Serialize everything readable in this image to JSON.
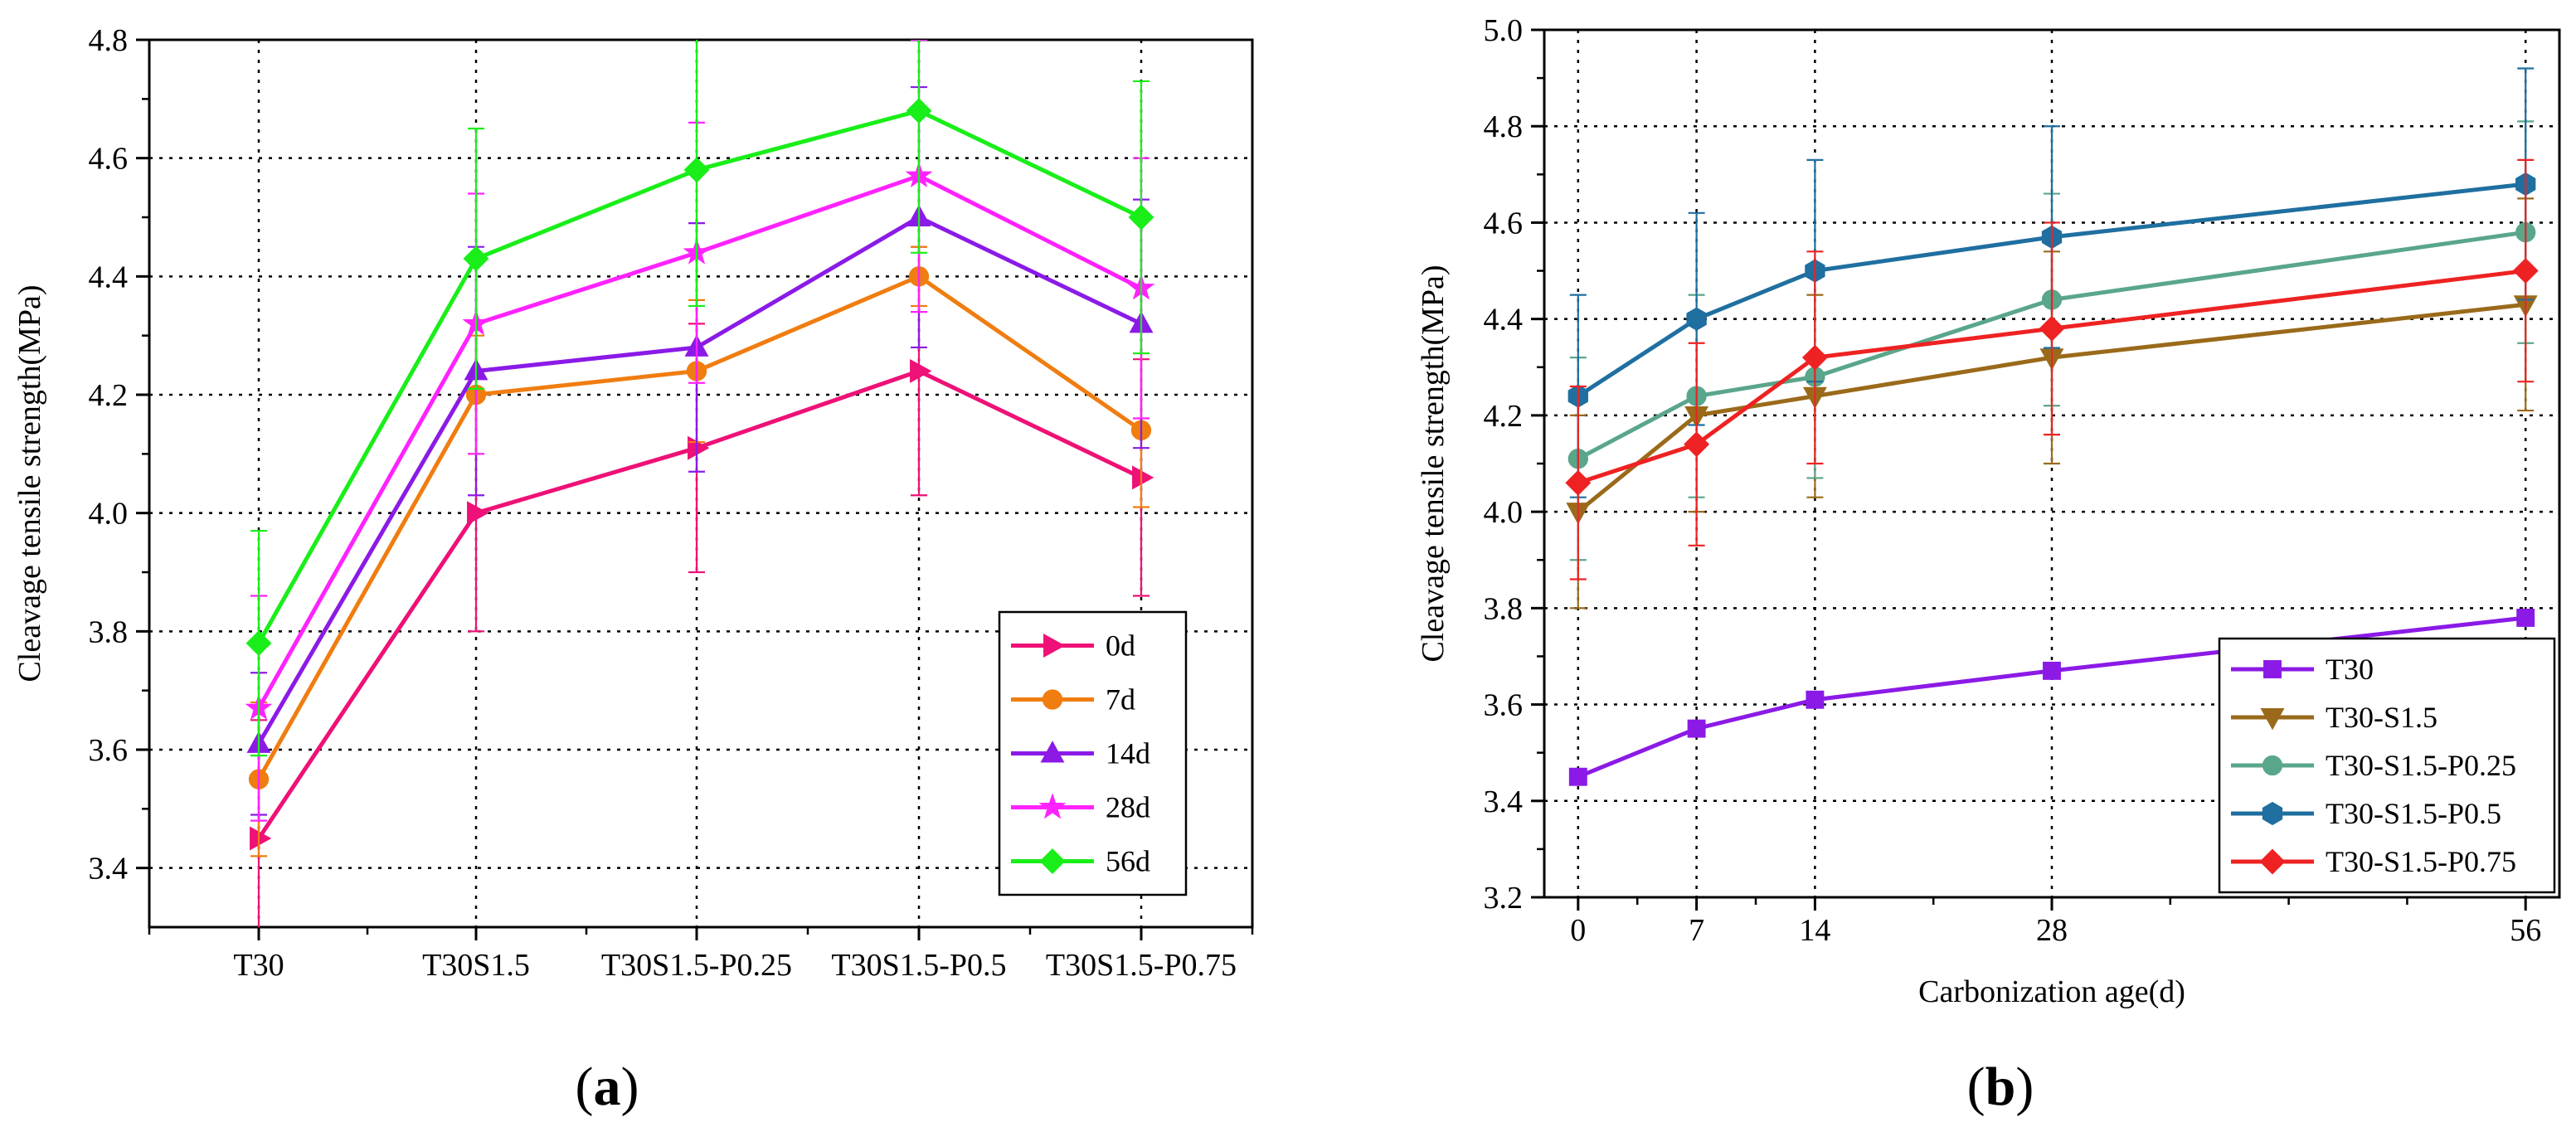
{
  "panel_labels": {
    "a": "(a)",
    "b": "(b)"
  },
  "chart_data": [
    {
      "type": "line",
      "panel": "a",
      "xlabel": "",
      "ylabel": "Cleavage tensile strength(MPa)",
      "categories": [
        "T30",
        "T30S1.5",
        "T30S1.5-P0.25",
        "T30S1.5-P0.5",
        "T30S1.5-P0.75"
      ],
      "ylim": [
        3.3,
        4.8
      ],
      "yticks": [
        3.4,
        3.6,
        3.8,
        4.0,
        4.2,
        4.4,
        4.6,
        4.8
      ],
      "ytick_labels": [
        "3.4",
        "3.6",
        "3.8",
        "4.0",
        "4.2",
        "4.4",
        "4.6",
        "4.8"
      ],
      "grid": true,
      "legend_position": "bottom-right",
      "series": [
        {
          "name": "0d",
          "color": "#ee1177",
          "marker": "triangle-right",
          "values": [
            3.45,
            4.0,
            4.11,
            4.24,
            4.06
          ],
          "errors": [
            0.2,
            0.2,
            0.21,
            0.21,
            0.2
          ]
        },
        {
          "name": "7d",
          "color": "#f07d10",
          "marker": "circle",
          "values": [
            3.55,
            4.2,
            4.24,
            4.4,
            4.14
          ],
          "errors": [
            0.13,
            0.1,
            0.12,
            0.05,
            0.13
          ]
        },
        {
          "name": "14d",
          "color": "#8b1ae6",
          "marker": "triangle-up",
          "values": [
            3.61,
            4.24,
            4.28,
            4.5,
            4.32
          ],
          "errors": [
            0.12,
            0.21,
            0.21,
            0.22,
            0.21
          ]
        },
        {
          "name": "28d",
          "color": "#ff22ff",
          "marker": "star",
          "values": [
            3.67,
            4.32,
            4.44,
            4.57,
            4.38
          ],
          "errors": [
            0.19,
            0.22,
            0.22,
            0.23,
            0.22
          ]
        },
        {
          "name": "56d",
          "color": "#19ee19",
          "marker": "diamond",
          "values": [
            3.78,
            4.43,
            4.58,
            4.68,
            4.5
          ],
          "errors": [
            0.19,
            0.22,
            0.23,
            0.24,
            0.23
          ]
        }
      ]
    },
    {
      "type": "line",
      "panel": "b",
      "xlabel": "Carbonization age(d)",
      "ylabel": "Cleavage tensile strength(MPa)",
      "x": [
        0,
        7,
        14,
        28,
        56
      ],
      "xticks": [
        0,
        7,
        14,
        28,
        56
      ],
      "xtick_labels": [
        "0",
        "7",
        "14",
        "28",
        "56"
      ],
      "xlim": [
        -2,
        58
      ],
      "ylim": [
        3.2,
        5.0
      ],
      "yticks": [
        3.2,
        3.4,
        3.6,
        3.8,
        4.0,
        4.2,
        4.4,
        4.6,
        4.8,
        5.0
      ],
      "ytick_labels": [
        "3.2",
        "3.4",
        "3.6",
        "3.8",
        "4.0",
        "4.2",
        "4.4",
        "4.6",
        "4.8",
        "5.0"
      ],
      "grid": true,
      "legend_position": "bottom-right",
      "series": [
        {
          "name": "T30",
          "color": "#8b1ae6",
          "marker": "square",
          "values": [
            3.45,
            3.55,
            3.61,
            3.67,
            3.78
          ],
          "errors": [
            0,
            0,
            0,
            0,
            0
          ]
        },
        {
          "name": "T30-S1.5",
          "color": "#9a6a1a",
          "marker": "triangle-down",
          "values": [
            4.0,
            4.2,
            4.24,
            4.32,
            4.43
          ],
          "errors": [
            0.2,
            0.2,
            0.21,
            0.22,
            0.22
          ]
        },
        {
          "name": "T30-S1.5-P0.25",
          "color": "#5aa68a",
          "marker": "circle",
          "values": [
            4.11,
            4.24,
            4.28,
            4.44,
            4.58
          ],
          "errors": [
            0.21,
            0.21,
            0.21,
            0.22,
            0.23
          ]
        },
        {
          "name": "T30-S1.5-P0.5",
          "color": "#1f6fa0",
          "marker": "hexagon",
          "values": [
            4.24,
            4.4,
            4.5,
            4.57,
            4.68
          ],
          "errors": [
            0.21,
            0.22,
            0.23,
            0.23,
            0.24
          ]
        },
        {
          "name": "T30-S1.5-P0.75",
          "color": "#ee2222",
          "marker": "diamond",
          "values": [
            4.06,
            4.14,
            4.32,
            4.38,
            4.5
          ],
          "errors": [
            0.2,
            0.21,
            0.22,
            0.22,
            0.23
          ]
        }
      ]
    }
  ]
}
